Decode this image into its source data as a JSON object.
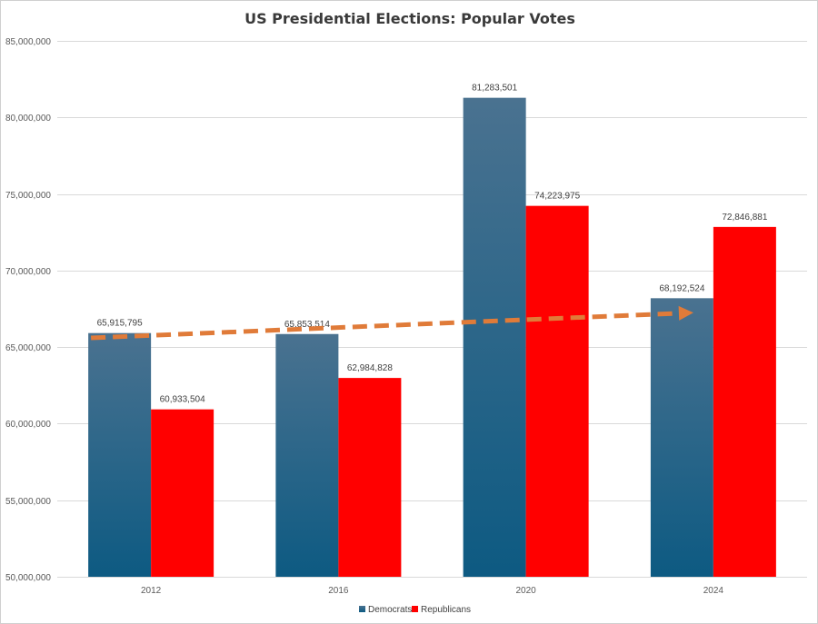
{
  "chart_data": {
    "type": "bar",
    "title": "US Presidential Elections: Popular Votes",
    "xlabel": "",
    "ylabel": "",
    "categories": [
      "2012",
      "2016",
      "2020",
      "2024"
    ],
    "series": [
      {
        "name": "Democrats",
        "values": [
          65915795,
          65853514,
          81283501,
          68192524
        ],
        "labels": [
          "65,915,795",
          "65,853,514",
          "81,283,501",
          "68,192,524"
        ],
        "color_top": "#4a7290",
        "color_bottom": "#0d5a82"
      },
      {
        "name": "Republicans",
        "values": [
          60933504,
          62984828,
          74223975,
          72846881
        ],
        "labels": [
          "60,933,504",
          "62,984,828",
          "74,223,975",
          "72,846,881"
        ],
        "color": "#ff0000"
      }
    ],
    "ylim": [
      50000000,
      85000000
    ],
    "yticks": [
      50000000,
      55000000,
      60000000,
      65000000,
      70000000,
      75000000,
      80000000,
      85000000
    ],
    "ytick_labels": [
      "50,000,000",
      "55,000,000",
      "60,000,000",
      "65,000,000",
      "70,000,000",
      "75,000,000",
      "80,000,000",
      "85,000,000"
    ],
    "grid": true,
    "legend_position": "bottom-center",
    "annotation": {
      "type": "dashed-trend-arrow",
      "color": "#e07b39",
      "from": {
        "category": "2012",
        "value": 65600000
      },
      "to": {
        "category": "2024",
        "value": 67250000
      }
    }
  }
}
